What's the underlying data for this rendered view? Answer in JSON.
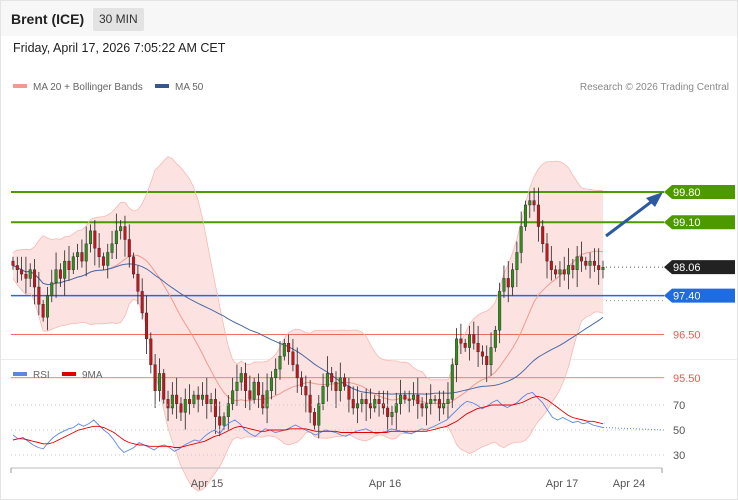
{
  "header": {
    "instrument": "Brent (ICE)",
    "interval": "30 MIN",
    "datetime": "Friday, April 17, 2026 7:05:22 AM CET"
  },
  "legend": {
    "ma20": "MA 20 + Bollinger Bands",
    "ma50": "MA 50",
    "copyright": "Research © 2026 Trading Central",
    "rsi": "RSI",
    "rsi_ma": "9MA"
  },
  "colors": {
    "resistance": "#4c9a00",
    "support": "#1f6be0",
    "price": "#222222",
    "minor_level": "#e85b50",
    "band_fill": "#fde2e2",
    "ma20": "#f29a90",
    "ma50": "#4a6aa8",
    "rsi": "#5b86e5",
    "rsi_ma": "#e00000",
    "candle_up": "#2f8f1f",
    "candle_down": "#c4161c",
    "arrow": "#2b5aa0"
  },
  "chart_data": [
    {
      "type": "candlestick",
      "name": "price",
      "price_range": [
        93.0,
        102.0
      ],
      "x_labels": [
        "Apr 15",
        "Apr 16",
        "Apr 17",
        "Apr 24"
      ],
      "levels": [
        {
          "label": "99.80",
          "value": 99.8,
          "kind": "resistance"
        },
        {
          "label": "99.10",
          "value": 99.1,
          "kind": "resistance"
        },
        {
          "label": "98.06",
          "value": 98.06,
          "kind": "last"
        },
        {
          "label": "97.40",
          "value": 97.4,
          "kind": "support"
        },
        {
          "label": "96.50",
          "value": 96.5,
          "kind": "minor"
        },
        {
          "label": "95.50",
          "value": 95.5,
          "kind": "minor"
        }
      ],
      "close": [
        98.1,
        98.0,
        97.9,
        97.8,
        98.0,
        97.6,
        97.2,
        96.9,
        97.4,
        97.7,
        98.0,
        97.8,
        98.2,
        98.0,
        98.3,
        98.4,
        98.2,
        98.6,
        98.9,
        98.5,
        98.3,
        98.1,
        98.4,
        98.6,
        98.9,
        99.0,
        98.7,
        98.3,
        97.9,
        97.5,
        97.0,
        96.4,
        95.8,
        95.2,
        95.6,
        95.0,
        94.8,
        95.1,
        94.9,
        94.7,
        95.0,
        94.9,
        95.1,
        95.0,
        95.1,
        94.9,
        95.0,
        94.6,
        94.4,
        94.6,
        94.9,
        95.2,
        95.4,
        95.6,
        95.2,
        95.0,
        95.4,
        95.1,
        94.8,
        95.2,
        95.5,
        95.7,
        96.0,
        96.3,
        96.1,
        95.8,
        95.5,
        95.3,
        95.1,
        94.7,
        94.4,
        94.9,
        95.3,
        95.6,
        95.4,
        95.2,
        95.5,
        95.3,
        95.0,
        94.8,
        94.9,
        95.0,
        94.9,
        94.8,
        95.0,
        94.9,
        94.8,
        94.6,
        94.7,
        94.9,
        95.1,
        95.0,
        95.0,
        95.1,
        94.9,
        94.8,
        94.9,
        95.0,
        95.0,
        94.8,
        94.9,
        95.0,
        95.8,
        96.4,
        96.3,
        96.2,
        96.5,
        96.3,
        96.1,
        96.0,
        95.8,
        96.2,
        96.6,
        97.5,
        97.8,
        97.6,
        98.0,
        98.4,
        99.0,
        99.5,
        99.6,
        99.5,
        99.0,
        98.6,
        98.2,
        98.0,
        97.9,
        98.0,
        97.9,
        98.1,
        98.0,
        98.3,
        98.2,
        98.1,
        98.2,
        98.1,
        98.0,
        98.06
      ]
    },
    {
      "type": "line",
      "name": "rsi",
      "y_ticks": [
        70,
        50,
        30
      ],
      "rsi": [
        46,
        43,
        44,
        41,
        38,
        36,
        35,
        40,
        44,
        47,
        49,
        51,
        52,
        55,
        53,
        55,
        58,
        54,
        50,
        47,
        42,
        36,
        32,
        34,
        36,
        40,
        38,
        36,
        34,
        37,
        38,
        36,
        33,
        35,
        38,
        40,
        42,
        41,
        45,
        48,
        50,
        47,
        53,
        56,
        58,
        55,
        50,
        47,
        45,
        48,
        51,
        50,
        48,
        49,
        50,
        52,
        54,
        52,
        50,
        48,
        46,
        48,
        50,
        49,
        48,
        46,
        45,
        47,
        49,
        50,
        51,
        49,
        47,
        48,
        49,
        51,
        50,
        49,
        48,
        47,
        49,
        51,
        50,
        52,
        54,
        56,
        58,
        62,
        66,
        70,
        73,
        72,
        70,
        67,
        69,
        72,
        74,
        70,
        68,
        70,
        72,
        76,
        79,
        80,
        76,
        72,
        66,
        60,
        58,
        60,
        58,
        56,
        57,
        55,
        56,
        54,
        53,
        52
      ],
      "rsi_ma": [
        42,
        43,
        43,
        42,
        41,
        40,
        39,
        39,
        40,
        42,
        44,
        46,
        48,
        50,
        51,
        52,
        53,
        53,
        52,
        50,
        48,
        45,
        42,
        40,
        39,
        38,
        38,
        37,
        37,
        37,
        37,
        37,
        36,
        36,
        37,
        38,
        39,
        40,
        41,
        43,
        45,
        46,
        48,
        50,
        52,
        53,
        52,
        51,
        50,
        49,
        49,
        50,
        50,
        50,
        50,
        51,
        51,
        51,
        51,
        50,
        49,
        49,
        49,
        49,
        49,
        48,
        48,
        48,
        48,
        48,
        48,
        48,
        48,
        48,
        48,
        49,
        49,
        49,
        49,
        49,
        49,
        49,
        49,
        50,
        51,
        52,
        53,
        55,
        57,
        60,
        63,
        65,
        67,
        68,
        69,
        70,
        70,
        70,
        70,
        70,
        71,
        72,
        74,
        76,
        77,
        76,
        74,
        71,
        68,
        65,
        62,
        60,
        59,
        58,
        57,
        57,
        56,
        55
      ]
    }
  ]
}
